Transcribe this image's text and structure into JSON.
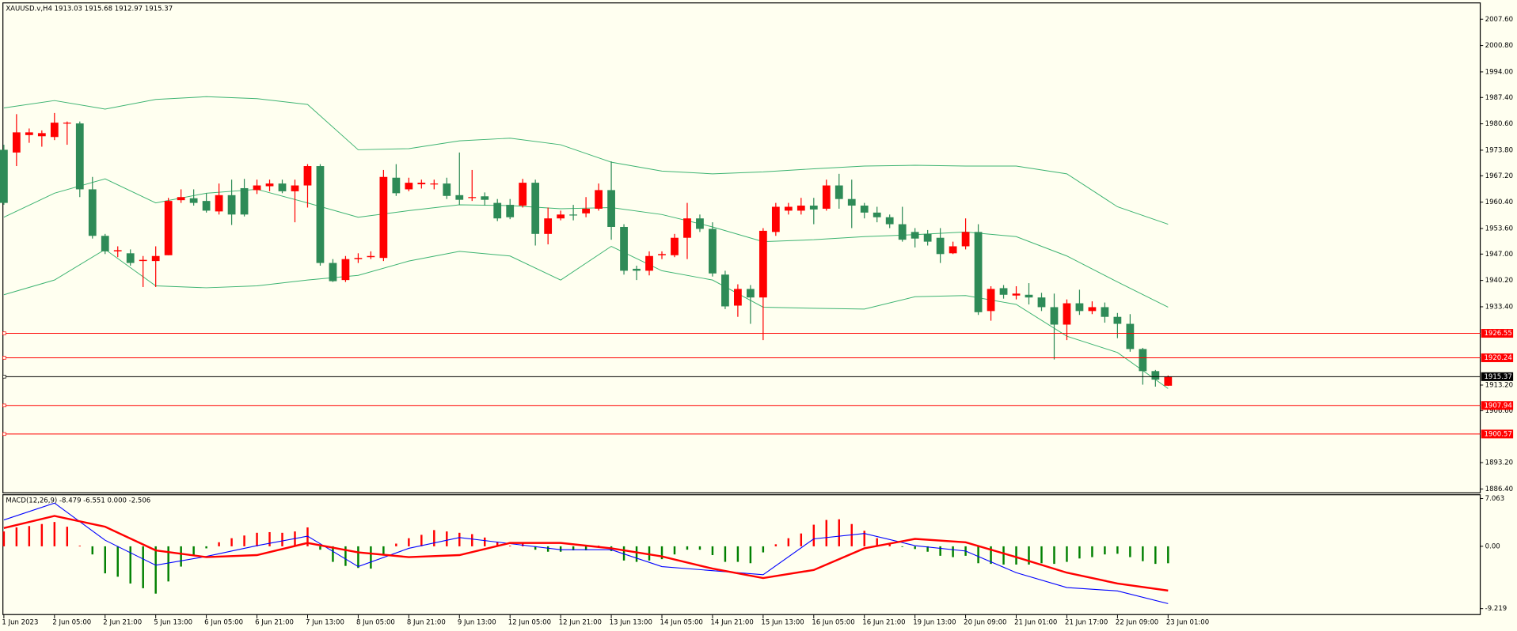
{
  "chart_data": [
    {
      "type": "candlestick",
      "title": "XAUUSD.v,H4  1913.03 1915.68 1912.97 1915.37",
      "categories": [
        "1 Jun 2023",
        null,
        null,
        null,
        "2 Jun 05:00",
        null,
        null,
        null,
        "2 Jun 21:00",
        null,
        null,
        null,
        "5 Jun 13:00",
        null,
        null,
        null,
        "6 Jun 05:00",
        null,
        null,
        null,
        "6 Jun 21:00",
        null,
        null,
        null,
        "7 Jun 13:00",
        null,
        null,
        null,
        "8 Jun 05:00",
        null,
        null,
        null,
        "8 Jun 21:00",
        null,
        null,
        null,
        "9 Jun 13:00",
        null,
        null,
        null,
        "12 Jun 05:00",
        null,
        null,
        null,
        "12 Jun 21:00",
        null,
        null,
        null,
        "13 Jun 13:00",
        null,
        null,
        null,
        "14 Jun 05:00",
        null,
        null,
        null,
        "14 Jun 21:00",
        null,
        null,
        null,
        "15 Jun 13:00",
        null,
        null,
        null,
        "16 Jun 05:00",
        null,
        null,
        null,
        "16 Jun 21:00",
        null,
        null,
        null,
        "19 Jun 13:00",
        null,
        null,
        null,
        "20 Jun 09:00",
        null,
        null,
        null,
        "21 Jun 01:00",
        null,
        null,
        null,
        "21 Jun 17:00",
        null,
        null,
        null,
        "22 Jun 09:00",
        null,
        null,
        null,
        "23 Jun 01:00"
      ],
      "open": [
        1973.9,
        1973.2,
        1977.7,
        1977.4,
        1977.2,
        1980.7,
        1980.7,
        1963.7,
        1951.7,
        1947.7,
        1947.2,
        1945.2,
        1945.2,
        1946.7,
        1960.9,
        1961.4,
        1960.7,
        1958.0,
        1962.2,
        1964.0,
        1963.5,
        1964.5,
        1965.2,
        1963.2,
        1964.7,
        1969.7,
        1944.7,
        1940.3,
        1945.7,
        1946.2,
        1946.0,
        1966.7,
        1963.7,
        1965.0,
        1965.0,
        1965.2,
        1962.2,
        1961.5,
        1961.9,
        1960.2,
        1959.7,
        1959.5,
        1965.4,
        1952.2,
        1956.2,
        1957.2,
        1957.5,
        1958.7,
        1963.5,
        1954.0,
        1943.2,
        1942.7,
        1946.7,
        1946.7,
        1951.2,
        1956.2,
        1953.5,
        1941.7,
        1933.7,
        1938.0,
        1935.8,
        1952.7,
        1958.2,
        1958.2,
        1959.5,
        1958.7,
        1964.7,
        1961.2,
        1959.5,
        1957.7,
        1956.5,
        1954.7,
        1952.7,
        1952.2,
        1951.2,
        1947.2,
        1949.0,
        1952.7,
        1932.3,
        1938.2,
        1936.3,
        1936.5,
        1935.8,
        1933.3,
        1928.8,
        1934.3,
        1932.3,
        1933.3,
        1930.8,
        1929.0,
        1922.5,
        1916.8,
        1913.03
      ],
      "high": [
        1975.2,
        1983.1,
        1979.4,
        1978.9,
        1983.4,
        1981.2,
        1981.2,
        1966.9,
        1952.2,
        1949.0,
        1948.2,
        1946.5,
        1949.0,
        1961.5,
        1963.7,
        1963.7,
        1962.7,
        1965.2,
        1966.2,
        1966.4,
        1966.2,
        1966.2,
        1966.2,
        1966.2,
        1970.2,
        1970.2,
        1945.7,
        1946.5,
        1947.2,
        1947.7,
        1968.7,
        1970.2,
        1966.7,
        1966.2,
        1966.2,
        1966.7,
        1973.2,
        1968.7,
        1962.9,
        1961.2,
        1961.2,
        1966.4,
        1966.2,
        1959.0,
        1958.2,
        1959.7,
        1961.7,
        1965.2,
        1970.9,
        1954.7,
        1944.0,
        1947.7,
        1947.7,
        1952.2,
        1960.2,
        1957.2,
        1955.2,
        1942.7,
        1939.2,
        1939.0,
        1953.7,
        1960.2,
        1960.2,
        1961.5,
        1961.5,
        1966.2,
        1967.7,
        1966.2,
        1960.2,
        1959.2,
        1957.2,
        1959.2,
        1953.7,
        1953.2,
        1953.7,
        1950.2,
        1956.2,
        1954.7,
        1938.7,
        1939.0,
        1938.7,
        1939.5,
        1937.0,
        1936.8,
        1935.3,
        1937.8,
        1934.8,
        1934.5,
        1931.8,
        1931.5,
        1922.8,
        1917.1,
        1915.68
      ],
      "low": [
        1959.7,
        1969.7,
        1975.7,
        1974.7,
        1976.4,
        1975.2,
        1961.7,
        1951.0,
        1947.0,
        1946.2,
        1944.0,
        1938.5,
        1938.5,
        1946.7,
        1960.2,
        1959.5,
        1957.7,
        1957.2,
        1954.5,
        1956.7,
        1962.5,
        1963.2,
        1962.7,
        1955.2,
        1959.0,
        1944.0,
        1939.8,
        1939.8,
        1944.7,
        1945.7,
        1945.2,
        1962.0,
        1963.2,
        1963.9,
        1963.7,
        1961.2,
        1959.7,
        1960.7,
        1959.5,
        1955.5,
        1956.0,
        1959.0,
        1949.2,
        1949.5,
        1955.7,
        1955.7,
        1956.5,
        1958.2,
        1950.7,
        1941.7,
        1940.3,
        1941.5,
        1945.7,
        1946.2,
        1945.7,
        1952.7,
        1941.2,
        1932.8,
        1930.8,
        1929.0,
        1924.8,
        1951.7,
        1957.2,
        1957.2,
        1954.7,
        1958.2,
        1958.7,
        1953.7,
        1956.2,
        1955.2,
        1953.7,
        1950.2,
        1948.7,
        1949.2,
        1944.7,
        1947.0,
        1948.2,
        1931.3,
        1929.8,
        1935.5,
        1935.3,
        1934.0,
        1932.3,
        1919.8,
        1924.8,
        1931.3,
        1931.5,
        1929.3,
        1925.3,
        1921.8,
        1913.3,
        1912.8,
        1912.97
      ],
      "close": [
        1960.2,
        1978.4,
        1978.4,
        1978.2,
        1980.9,
        1980.9,
        1963.7,
        1951.7,
        1947.7,
        1948.0,
        1944.7,
        1945.5,
        1946.5,
        1960.7,
        1961.7,
        1960.2,
        1958.2,
        1962.2,
        1957.2,
        1957.2,
        1964.7,
        1965.2,
        1963.2,
        1964.7,
        1969.7,
        1944.7,
        1940.0,
        1945.7,
        1946.0,
        1946.5,
        1966.9,
        1962.7,
        1965.4,
        1965.4,
        1965.2,
        1962.0,
        1961.0,
        1961.7,
        1961.0,
        1956.2,
        1956.5,
        1965.4,
        1952.2,
        1956.2,
        1957.2,
        1957.0,
        1958.7,
        1963.5,
        1954.0,
        1942.7,
        1942.7,
        1946.5,
        1947.0,
        1951.2,
        1956.2,
        1953.5,
        1942.0,
        1933.5,
        1938.0,
        1935.8,
        1953.0,
        1959.2,
        1959.2,
        1959.5,
        1958.5,
        1964.7,
        1961.2,
        1959.5,
        1957.7,
        1956.5,
        1954.7,
        1950.7,
        1951.0,
        1950.2,
        1947.0,
        1949.0,
        1952.7,
        1932.0,
        1938.0,
        1936.5,
        1936.8,
        1935.8,
        1933.3,
        1928.8,
        1934.3,
        1932.3,
        1933.3,
        1930.8,
        1929.0,
        1922.5,
        1916.8,
        1914.6,
        1915.37
      ],
      "up_color": "#ff0000",
      "down_color": "#2e8b57",
      "bands": [
        {
          "color": "#3cb371",
          "x": [
            0,
            4,
            8,
            12,
            16,
            20,
            24,
            28,
            32,
            36,
            40,
            44,
            48,
            52,
            56,
            60,
            64,
            68,
            72,
            76,
            80,
            84,
            88,
            92
          ],
          "values": [
            1984.7,
            1986.6,
            1984.4,
            1986.9,
            1987.6,
            1987.1,
            1985.6,
            1973.9,
            1974.2,
            1976.2,
            1976.9,
            1975.2,
            1970.7,
            1968.4,
            1967.7,
            1968.2,
            1969.0,
            1969.7,
            1969.9,
            1969.7,
            1969.7,
            1967.7,
            1959.2,
            1954.7
          ]
        },
        {
          "color": "#3cb371",
          "x": [
            0,
            4,
            8,
            12,
            16,
            20,
            24,
            28,
            32,
            36,
            40,
            44,
            48,
            52,
            56,
            60,
            64,
            68,
            72,
            76,
            80,
            84,
            88,
            92
          ],
          "values": [
            1956.5,
            1962.7,
            1966.4,
            1960.2,
            1962.7,
            1963.7,
            1960.2,
            1956.5,
            1958.2,
            1959.7,
            1959.5,
            1958.7,
            1959.0,
            1957.2,
            1954.0,
            1950.2,
            1950.7,
            1951.5,
            1952.0,
            1952.7,
            1951.5,
            1946.5,
            1939.8,
            1933.3
          ]
        },
        {
          "color": "#3cb371",
          "x": [
            0,
            4,
            8,
            12,
            16,
            20,
            24,
            28,
            32,
            36,
            40,
            44,
            48,
            52,
            56,
            60,
            64,
            68,
            72,
            76,
            80,
            84,
            88,
            92
          ],
          "values": [
            1936.5,
            1940.3,
            1948.2,
            1938.8,
            1938.3,
            1938.8,
            1940.3,
            1941.5,
            1945.2,
            1947.7,
            1946.5,
            1940.3,
            1949.0,
            1942.7,
            1940.3,
            1933.3,
            1933.0,
            1932.8,
            1936.0,
            1936.3,
            1934.0,
            1925.8,
            1921.6,
            1912.3
          ]
        }
      ],
      "levels": [
        1926.55,
        1920.24,
        1907.94,
        1900.57
      ],
      "level_color": "#ff0000",
      "current_price": 1915.37,
      "current_color": "#000000",
      "ylim": [
        1885.4,
        2011.8
      ],
      "yticks": [
        {
          "value": 2007.6,
          "label": "2007.60"
        },
        {
          "value": 2000.8,
          "label": "2000.80"
        },
        {
          "value": 1994,
          "label": "1994.00"
        },
        {
          "value": 1987.4,
          "label": "1987.40"
        },
        {
          "value": 1980.6,
          "label": "1980.60"
        },
        {
          "value": 1973.8,
          "label": "1973.80"
        },
        {
          "value": 1967.2,
          "label": "1967.20"
        },
        {
          "value": 1960.4,
          "label": "1960.40"
        },
        {
          "value": 1953.6,
          "label": "1953.60"
        },
        {
          "value": 1947,
          "label": "1947.00"
        },
        {
          "value": 1940.2,
          "label": "1940.20"
        },
        {
          "value": 1933.4,
          "label": "1933.40"
        },
        {
          "value": 1913.2,
          "label": "1913.20"
        },
        {
          "value": 1906.6,
          "label": "1906.60"
        },
        {
          "value": 1893.2,
          "label": "1893.20"
        },
        {
          "value": 1886.4,
          "label": "1886.40"
        }
      ]
    },
    {
      "type": "macd",
      "title": "MACD(12,26,9) -8.479 -6.551 0.000 -2.506",
      "histogram": [
        2.2,
        2.8,
        3.0,
        3.3,
        3.6,
        2.9,
        0.1,
        -1.2,
        -4.0,
        -4.5,
        -5.5,
        -6.2,
        -7.0,
        -5.2,
        -3.0,
        -1.3,
        -0.3,
        0.6,
        1.2,
        1.6,
        2.0,
        2.1,
        2.0,
        2.2,
        2.8,
        -0.5,
        -2.3,
        -2.9,
        -3.2,
        -3.3,
        -1.2,
        0.4,
        1.2,
        1.7,
        2.4,
        2.2,
        2.0,
        1.8,
        1.3,
        0.6,
        0.1,
        0.5,
        -0.5,
        -0.8,
        -0.8,
        -0.6,
        -0.6,
        0.1,
        -0.7,
        -2.1,
        -2.3,
        -2.1,
        -1.9,
        -1.2,
        -0.5,
        -0.5,
        -1.3,
        -2.3,
        -2.3,
        -2.5,
        -0.9,
        0.3,
        1.2,
        1.9,
        3.2,
        3.9,
        4.0,
        3.3,
        2.3,
        1.2,
        0.5,
        -0.1,
        -0.4,
        -0.8,
        -1.4,
        -1.6,
        -1.4,
        -2.5,
        -2.6,
        -2.7,
        -2.7,
        -2.7,
        -2.5,
        -2.6,
        -2.3,
        -1.8,
        -1.6,
        -1.2,
        -1.1,
        -1.6,
        -2.2,
        -2.6,
        -2.506
      ],
      "pos_color": "#ff0000",
      "neg_color": "#008000",
      "series": [
        {
          "color": "#0000ff",
          "x": [
            0,
            4,
            8,
            12,
            16,
            20,
            24,
            28,
            32,
            36,
            40,
            44,
            48,
            52,
            56,
            60,
            64,
            68,
            72,
            76,
            80,
            84,
            88,
            92
          ],
          "values": [
            3.9,
            6.4,
            0.9,
            -2.8,
            -1.5,
            0.1,
            1.5,
            -3.0,
            -0.3,
            1.3,
            0.4,
            -0.5,
            -0.5,
            -3.0,
            -3.6,
            -4.2,
            1.1,
            1.9,
            0.1,
            -0.7,
            -3.9,
            -6.1,
            -6.6,
            -8.479
          ]
        },
        {
          "color": "#ff0000",
          "x": [
            0,
            4,
            8,
            12,
            16,
            20,
            24,
            28,
            32,
            36,
            40,
            44,
            48,
            52,
            56,
            60,
            64,
            68,
            72,
            76,
            80,
            84,
            88,
            92
          ],
          "values": [
            2.7,
            4.5,
            2.9,
            -0.6,
            -1.6,
            -1.3,
            0.5,
            -0.9,
            -1.6,
            -1.3,
            0.5,
            0.5,
            -0.3,
            -1.5,
            -3.3,
            -4.7,
            -3.5,
            -0.3,
            1.1,
            0.6,
            -1.6,
            -3.9,
            -5.5,
            -6.551
          ]
        }
      ],
      "ylim": [
        -10.1,
        7.63
      ],
      "yticks": [
        7.063,
        {
          "value": 0,
          "label": "0.00"
        },
        -9.219
      ]
    }
  ]
}
